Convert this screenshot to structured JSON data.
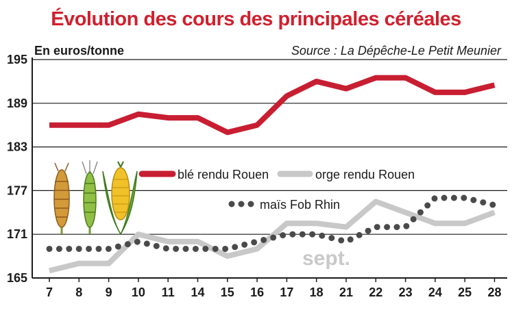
{
  "chart_data": {
    "type": "line",
    "title": "Évolution des cours des principales céréales",
    "ylabel": "En euros/tonne",
    "source": "Source : La Dépêche-Le Petit Meunier",
    "x": [
      "7",
      "8",
      "9",
      "10",
      "11",
      "14",
      "15",
      "16",
      "17",
      "18",
      "21",
      "22",
      "23",
      "24",
      "25",
      "28"
    ],
    "yticks": [
      165,
      171,
      177,
      183,
      189,
      195
    ],
    "ylim": [
      165,
      195
    ],
    "grid": true,
    "annotation": "sept.",
    "series": [
      {
        "name": "blé rendu Rouen",
        "color": "#c81e32",
        "style": "solid",
        "values": [
          186,
          186,
          186,
          187.5,
          187,
          187,
          185,
          186,
          190,
          192,
          191,
          192.5,
          192.5,
          190.5,
          190.5,
          191.5
        ]
      },
      {
        "name": "orge rendu Rouen",
        "color": "#c8c8c8",
        "style": "solid",
        "values": [
          166,
          167,
          167,
          171,
          170,
          170,
          168,
          169,
          172.5,
          172.5,
          172,
          175.5,
          174,
          172.5,
          172.5,
          174
        ]
      },
      {
        "name": "maïs Fob Rhin",
        "color": "#4a4a4a",
        "style": "dotted",
        "values": [
          169,
          169,
          169,
          170,
          169,
          169,
          169,
          170,
          171,
          171,
          170,
          172,
          172,
          176,
          176,
          175
        ]
      }
    ]
  }
}
